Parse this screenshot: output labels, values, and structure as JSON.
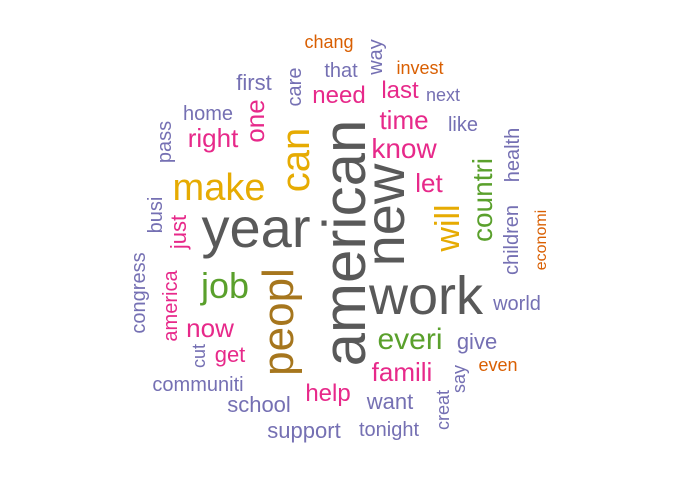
{
  "colors": {
    "gray": "#595959",
    "green": "#5aa02c",
    "orange": "#d95f02",
    "purple": "#7570b3",
    "pink": "#e7298a",
    "gold": "#e6ab02",
    "brown": "#a6761d"
  },
  "words": [
    {
      "text": "american",
      "color": "gray"
    },
    {
      "text": "work",
      "color": "gray"
    },
    {
      "text": "year",
      "color": "gray"
    },
    {
      "text": "new",
      "color": "gray"
    },
    {
      "text": "peopl",
      "color": "brown"
    },
    {
      "text": "can",
      "color": "gold"
    },
    {
      "text": "make",
      "color": "gold"
    },
    {
      "text": "will",
      "color": "gold"
    },
    {
      "text": "job",
      "color": "green"
    },
    {
      "text": "countri",
      "color": "green"
    },
    {
      "text": "everi",
      "color": "green"
    },
    {
      "text": "famili",
      "color": "pink"
    },
    {
      "text": "know",
      "color": "pink"
    },
    {
      "text": "time",
      "color": "pink"
    },
    {
      "text": "let",
      "color": "pink"
    },
    {
      "text": "last",
      "color": "pink"
    },
    {
      "text": "need",
      "color": "pink"
    },
    {
      "text": "right",
      "color": "pink"
    },
    {
      "text": "one",
      "color": "pink"
    },
    {
      "text": "just",
      "color": "pink"
    },
    {
      "text": "now",
      "color": "pink"
    },
    {
      "text": "get",
      "color": "pink"
    },
    {
      "text": "america",
      "color": "pink"
    },
    {
      "text": "help",
      "color": "pink"
    },
    {
      "text": "first",
      "color": "purple"
    },
    {
      "text": "care",
      "color": "purple"
    },
    {
      "text": "that",
      "color": "purple"
    },
    {
      "text": "way",
      "color": "purple"
    },
    {
      "text": "next",
      "color": "purple"
    },
    {
      "text": "home",
      "color": "purple"
    },
    {
      "text": "pass",
      "color": "purple"
    },
    {
      "text": "like",
      "color": "purple"
    },
    {
      "text": "health",
      "color": "purple"
    },
    {
      "text": "busi",
      "color": "purple"
    },
    {
      "text": "children",
      "color": "purple"
    },
    {
      "text": "congress",
      "color": "purple"
    },
    {
      "text": "world",
      "color": "purple"
    },
    {
      "text": "cut",
      "color": "purple"
    },
    {
      "text": "give",
      "color": "purple"
    },
    {
      "text": "communiti",
      "color": "purple"
    },
    {
      "text": "say",
      "color": "purple"
    },
    {
      "text": "school",
      "color": "purple"
    },
    {
      "text": "want",
      "color": "purple"
    },
    {
      "text": "creat",
      "color": "purple"
    },
    {
      "text": "support",
      "color": "purple"
    },
    {
      "text": "tonight",
      "color": "purple"
    },
    {
      "text": "chang",
      "color": "orange"
    },
    {
      "text": "invest",
      "color": "orange"
    },
    {
      "text": "economi",
      "color": "orange"
    },
    {
      "text": "even",
      "color": "orange"
    }
  ]
}
